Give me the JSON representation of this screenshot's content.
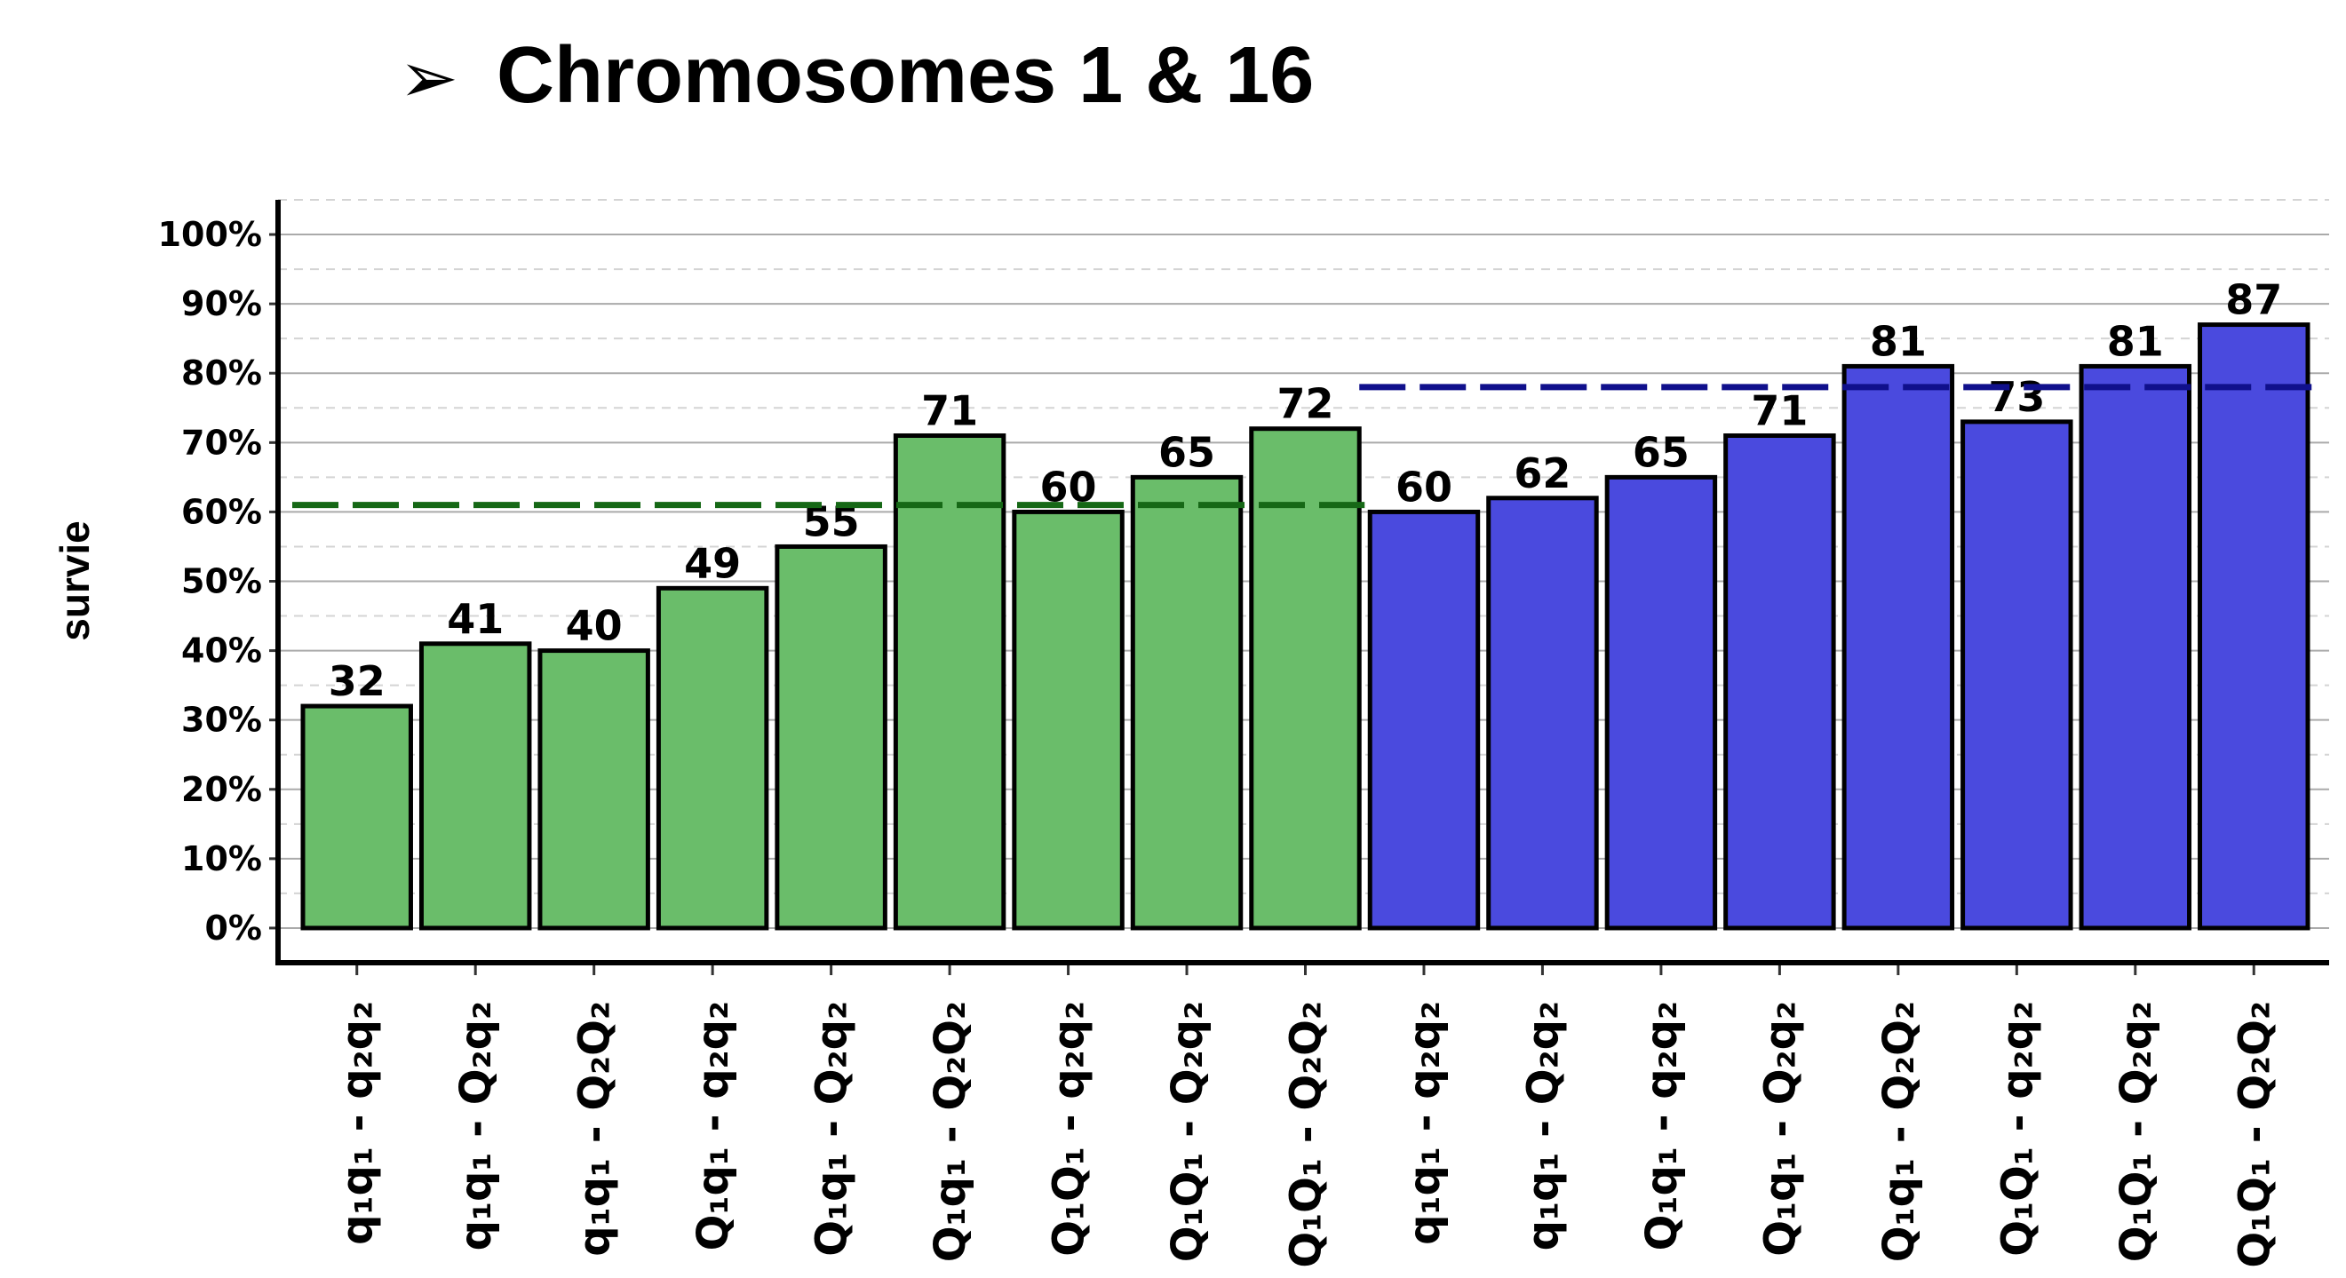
{
  "chart_data": {
    "type": "bar",
    "bullet": "➢",
    "title": "Chromosomes 1 & 16",
    "y_label": "survie",
    "categories": [
      "q₁q₁ - q₂q₂",
      "q₁q₁ - Q₂q₂",
      "q₁q₁ - Q₂Q₂",
      "Q₁q₁ - q₂q₂",
      "Q₁q₁ - Q₂q₂",
      "Q₁q₁ - Q₂Q₂",
      "Q₁Q₁ - q₂q₂",
      "Q₁Q₁ - Q₂q₂",
      "Q₁Q₁ - Q₂Q₂",
      "q₁q₁ - q₂q₂",
      "q₁q₁ - Q₂q₂",
      "Q₁q₁ - q₂q₂",
      "Q₁q₁ - Q₂q₂",
      "Q₁q₁ - Q₂Q₂",
      "Q₁Q₁ - q₂q₂",
      "Q₁Q₁ - Q₂q₂",
      "Q₁Q₁ - Q₂Q₂"
    ],
    "values": [
      32,
      41,
      40,
      49,
      55,
      71,
      60,
      65,
      72,
      60,
      62,
      65,
      71,
      81,
      73,
      81,
      87
    ],
    "colors": [
      "#6abd6a",
      "#6abd6a",
      "#6abd6a",
      "#6abd6a",
      "#6abd6a",
      "#6abd6a",
      "#6abd6a",
      "#6abd6a",
      "#6abd6a",
      "#4a4ade",
      "#4a4ade",
      "#4a4ade",
      "#4a4ade",
      "#4a4ade",
      "#4a4ade",
      "#4a4ade",
      "#4a4ade"
    ],
    "reference_lines": [
      {
        "value": 61,
        "color": "#166816",
        "span": [
          0,
          8
        ]
      },
      {
        "value": 78,
        "color": "#10108c",
        "span": [
          9,
          16
        ]
      }
    ],
    "ylim": [
      -5,
      105
    ],
    "yticks": [
      {
        "value": 0,
        "label": "0%"
      },
      {
        "value": 10,
        "label": "10%"
      },
      {
        "value": 20,
        "label": "20%"
      },
      {
        "value": 30,
        "label": "30%"
      },
      {
        "value": 40,
        "label": "40%"
      },
      {
        "value": 50,
        "label": "50%"
      },
      {
        "value": 60,
        "label": "60%"
      },
      {
        "value": 70,
        "label": "70%"
      },
      {
        "value": 80,
        "label": "80%"
      },
      {
        "value": 90,
        "label": "90%"
      },
      {
        "value": 100,
        "label": "100%"
      }
    ],
    "grid": true,
    "minor_grid": true
  }
}
